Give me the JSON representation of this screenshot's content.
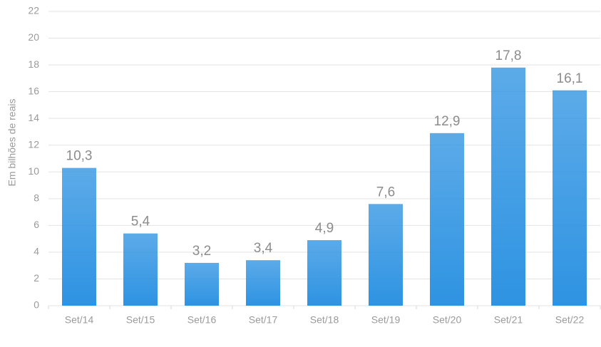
{
  "chart_data": {
    "type": "bar",
    "y_label": "Em bilhões de reais",
    "categories": [
      "Set/14",
      "Set/15",
      "Set/16",
      "Set/17",
      "Set/18",
      "Set/19",
      "Set/20",
      "Set/21",
      "Set/22"
    ],
    "values": [
      10.3,
      5.4,
      3.2,
      3.4,
      4.9,
      7.6,
      12.9,
      17.8,
      16.1
    ],
    "value_labels": [
      "10,3",
      "5,4",
      "3,2",
      "3,4",
      "4,9",
      "7,6",
      "12,9",
      "17,8",
      "16,1"
    ],
    "color": "#2e93e2",
    "ylim": [
      0,
      22
    ],
    "yticks": [
      0,
      2,
      4,
      6,
      8,
      10,
      12,
      14,
      16,
      18,
      20,
      22
    ],
    "grid": true
  }
}
